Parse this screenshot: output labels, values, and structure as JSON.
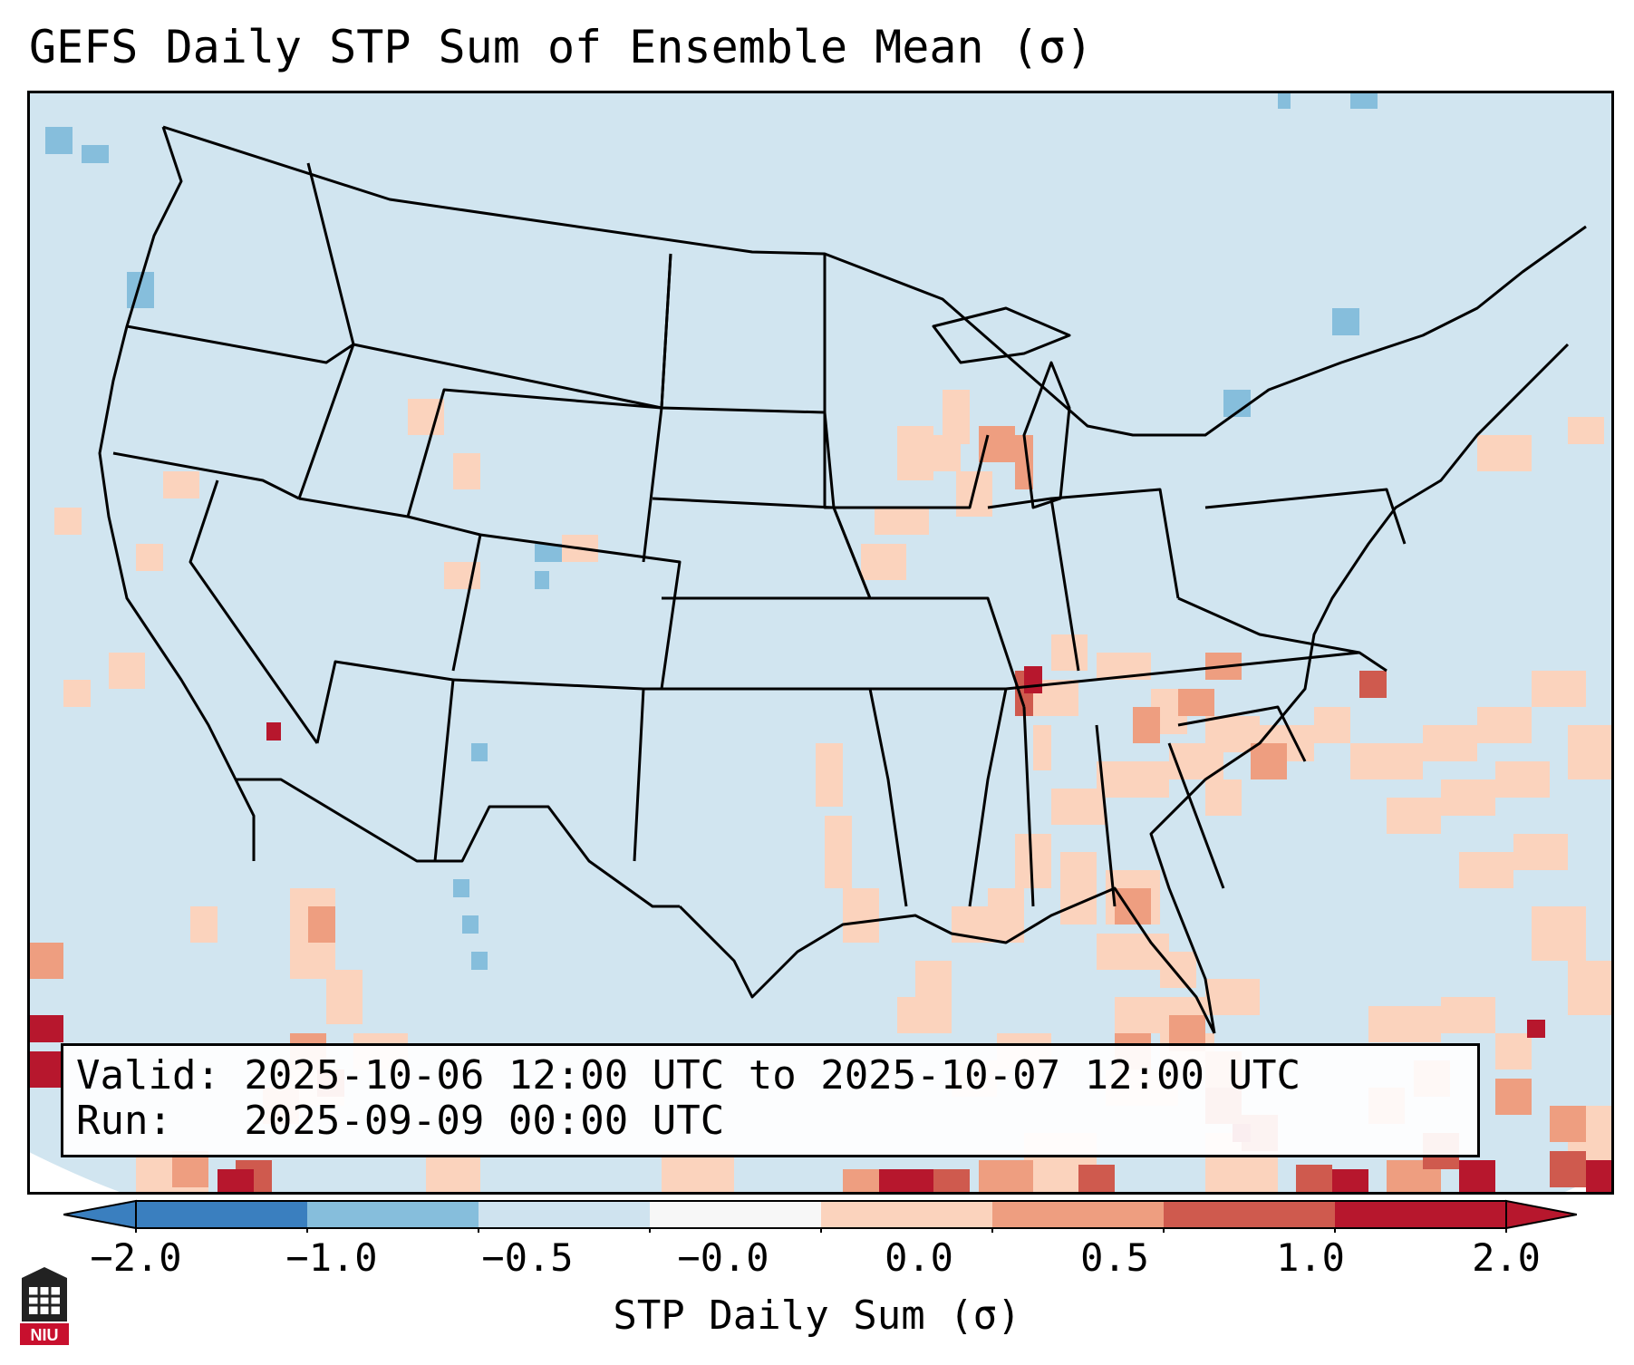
{
  "title": "GEFS Daily STP Sum of Ensemble Mean (σ)",
  "legend": {
    "valid": "Valid: 2025-10-06 12:00 UTC to 2025-10-07 12:00 UTC",
    "run": "Run:   2025-09-09 00:00 UTC"
  },
  "colorbar": {
    "label": "STP Daily Sum (σ)",
    "ticks": [
      "−2.0",
      "−1.0",
      "−0.5",
      "−0.0",
      "0.0",
      "0.5",
      "1.0",
      "2.0"
    ],
    "colors": [
      "#3a7fbf",
      "#86bedc",
      "#cfe3ef",
      "#f7f7f7",
      "#fbd3bd",
      "#ee9e80",
      "#cf5a4e",
      "#b7172d"
    ]
  },
  "map": {
    "background_color": "#d1e5f0",
    "border_color": "#000000"
  },
  "logo": {
    "text": "NIU",
    "icon": "university-tower-icon"
  }
}
